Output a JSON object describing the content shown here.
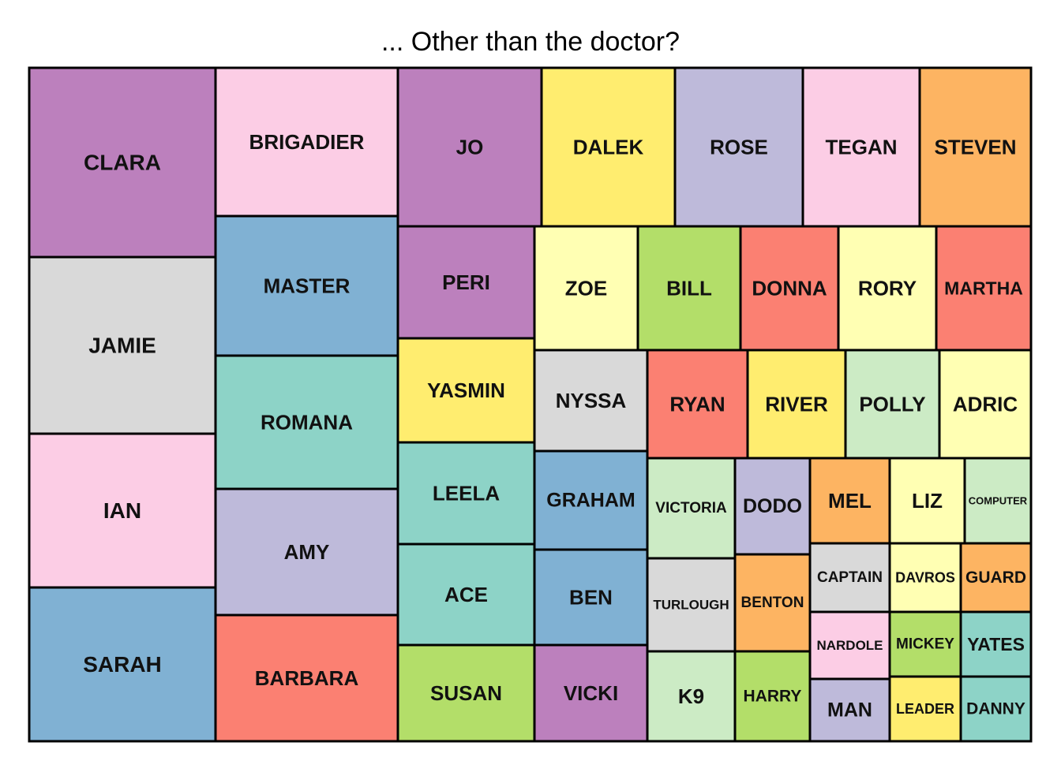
{
  "chart_data": {
    "type": "treemap",
    "title": "... Other than the doctor?",
    "palette": {
      "purple": "#BC80BD",
      "pink": "#FCCDE5",
      "yellow": "#FFED6F",
      "lavender": "#BEBADA",
      "orange": "#FDB462",
      "blue": "#80B1D3",
      "teal": "#8DD3C7",
      "cream": "#FFFFB3",
      "green": "#B3DE69",
      "red": "#FB8072",
      "grey": "#D9D9D9",
      "mint": "#CCEBC5"
    },
    "items": [
      {
        "label": "CLARA",
        "value": 56,
        "color": "purple"
      },
      {
        "label": "JAMIE",
        "value": 53,
        "color": "grey"
      },
      {
        "label": "IAN",
        "value": 46,
        "color": "pink"
      },
      {
        "label": "SARAH",
        "value": 46,
        "color": "blue"
      },
      {
        "label": "BRIGADIER",
        "value": 43,
        "color": "pink"
      },
      {
        "label": "MASTER",
        "value": 40,
        "color": "blue"
      },
      {
        "label": "ROMANA",
        "value": 39,
        "color": "teal"
      },
      {
        "label": "AMY",
        "value": 37,
        "color": "lavender"
      },
      {
        "label": "BARBARA",
        "value": 37,
        "color": "red"
      },
      {
        "label": "JO",
        "value": 33,
        "color": "purple"
      },
      {
        "label": "DALEK",
        "value": 33,
        "color": "yellow"
      },
      {
        "label": "ROSE",
        "value": 32,
        "color": "lavender"
      },
      {
        "label": "TEGAN",
        "value": 29,
        "color": "pink"
      },
      {
        "label": "STEVEN",
        "value": 28,
        "color": "orange"
      },
      {
        "label": "PERI",
        "value": 23,
        "color": "purple"
      },
      {
        "label": "YASMIN",
        "value": 23,
        "color": "yellow"
      },
      {
        "label": "LEELA",
        "value": 22,
        "color": "teal"
      },
      {
        "label": "ACE",
        "value": 22,
        "color": "teal"
      },
      {
        "label": "SUSAN",
        "value": 21,
        "color": "green"
      },
      {
        "label": "ZOE",
        "value": 20,
        "color": "cream"
      },
      {
        "label": "BILL",
        "value": 20,
        "color": "green"
      },
      {
        "label": "DONNA",
        "value": 19,
        "color": "red"
      },
      {
        "label": "RORY",
        "value": 19,
        "color": "cream"
      },
      {
        "label": "MARTHA",
        "value": 19,
        "color": "red"
      },
      {
        "label": "NYSSA",
        "value": 18,
        "color": "grey"
      },
      {
        "label": "GRAHAM",
        "value": 18,
        "color": "blue"
      },
      {
        "label": "BEN",
        "value": 17,
        "color": "blue"
      },
      {
        "label": "VICKI",
        "value": 17,
        "color": "purple"
      },
      {
        "label": "RYAN",
        "value": 17,
        "color": "red"
      },
      {
        "label": "RIVER",
        "value": 16,
        "color": "yellow"
      },
      {
        "label": "POLLY",
        "value": 16,
        "color": "mint"
      },
      {
        "label": "ADRIC",
        "value": 15,
        "color": "cream"
      },
      {
        "label": "VICTORIA",
        "value": 13,
        "color": "mint"
      },
      {
        "label": "DODO",
        "value": 11,
        "color": "lavender"
      },
      {
        "label": "TURLOUGH",
        "value": 12,
        "color": "grey"
      },
      {
        "label": "BENTON",
        "value": 11,
        "color": "orange"
      },
      {
        "label": "K9",
        "value": 12,
        "color": "mint"
      },
      {
        "label": "HARRY",
        "value": 10,
        "color": "green"
      },
      {
        "label": "MEL",
        "value": 8,
        "color": "orange"
      },
      {
        "label": "LIZ",
        "value": 8,
        "color": "cream"
      },
      {
        "label": "COMPUTER",
        "value": 7,
        "color": "mint"
      },
      {
        "label": "CAPTAIN",
        "value": 7,
        "color": "grey"
      },
      {
        "label": "DAVROS",
        "value": 7,
        "color": "cream"
      },
      {
        "label": "GUARD",
        "value": 7,
        "color": "orange"
      },
      {
        "label": "NARDOLE",
        "value": 6,
        "color": "pink"
      },
      {
        "label": "MICKEY",
        "value": 6,
        "color": "green"
      },
      {
        "label": "YATES",
        "value": 6,
        "color": "teal"
      },
      {
        "label": "MAN",
        "value": 6,
        "color": "lavender"
      },
      {
        "label": "LEADER",
        "value": 6,
        "color": "yellow"
      },
      {
        "label": "DANNY",
        "value": 6,
        "color": "teal"
      }
    ]
  }
}
